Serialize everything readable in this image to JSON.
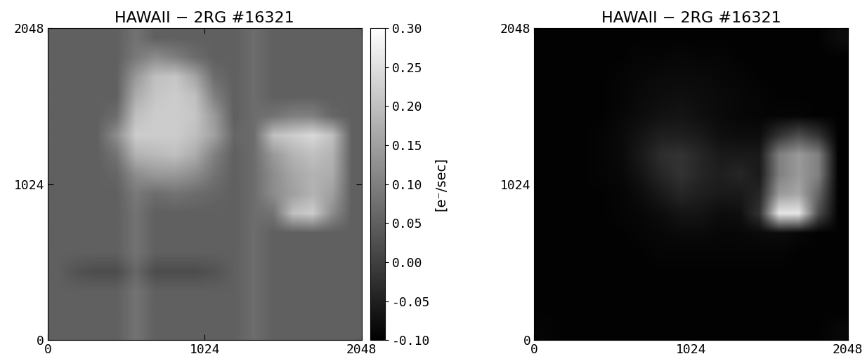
{
  "chart_data": [
    {
      "type": "heatmap",
      "title": "HAWAII − 2RG #16321",
      "xlim": [
        0,
        2048
      ],
      "ylim": [
        0,
        2048
      ],
      "xticks": [
        0,
        1024,
        2048
      ],
      "yticks": [
        0,
        1024,
        2048
      ],
      "color_range": [
        -0.1,
        0.3
      ],
      "colorbar": {
        "label": "[e⁻/sec]",
        "ticks": [
          {
            "value": -0.1,
            "label": "-0.10"
          },
          {
            "value": -0.05,
            "label": "-0.05"
          },
          {
            "value": 0.0,
            "label": "0.00"
          },
          {
            "value": 0.05,
            "label": "0.05"
          },
          {
            "value": 0.1,
            "label": "0.10"
          },
          {
            "value": 0.15,
            "label": "0.15"
          },
          {
            "value": 0.2,
            "label": "0.20"
          },
          {
            "value": 0.25,
            "label": "0.25"
          },
          {
            "value": 0.3,
            "label": "0.30"
          }
        ]
      },
      "cells": [
        [
          0.05,
          0.05,
          0.05,
          0.05,
          0.08,
          0.05,
          0.05,
          0.05,
          0.05,
          0.05,
          0.07,
          0.05,
          0.05,
          0.05,
          0.05,
          0.05
        ],
        [
          0.05,
          0.05,
          0.05,
          0.05,
          0.08,
          0.05,
          0.05,
          0.05,
          0.05,
          0.05,
          0.07,
          0.05,
          0.05,
          0.05,
          0.05,
          0.05
        ],
        [
          0.05,
          0.05,
          0.05,
          0.05,
          0.08,
          0.05,
          0.05,
          0.05,
          0.05,
          0.05,
          0.07,
          0.05,
          0.05,
          0.05,
          0.05,
          0.05
        ],
        [
          0.05,
          0.03,
          0.02,
          0.02,
          0.06,
          0.02,
          0.02,
          0.02,
          0.03,
          0.05,
          0.07,
          0.05,
          0.05,
          0.05,
          0.05,
          0.05
        ],
        [
          0.05,
          0.05,
          0.05,
          0.05,
          0.08,
          0.05,
          0.05,
          0.05,
          0.05,
          0.05,
          0.07,
          0.05,
          0.05,
          0.05,
          0.05,
          0.05
        ],
        [
          0.05,
          0.05,
          0.05,
          0.05,
          0.08,
          0.05,
          0.05,
          0.05,
          0.05,
          0.05,
          0.07,
          0.05,
          0.05,
          0.05,
          0.05,
          0.05
        ],
        [
          0.05,
          0.05,
          0.05,
          0.05,
          0.08,
          0.05,
          0.05,
          0.05,
          0.05,
          0.05,
          0.07,
          0.08,
          0.2,
          0.22,
          0.12,
          0.05
        ],
        [
          0.05,
          0.05,
          0.05,
          0.05,
          0.09,
          0.07,
          0.08,
          0.07,
          0.06,
          0.05,
          0.07,
          0.12,
          0.15,
          0.18,
          0.15,
          0.05
        ],
        [
          0.05,
          0.05,
          0.05,
          0.06,
          0.12,
          0.14,
          0.14,
          0.12,
          0.08,
          0.05,
          0.07,
          0.12,
          0.16,
          0.18,
          0.17,
          0.05
        ],
        [
          0.05,
          0.05,
          0.05,
          0.08,
          0.18,
          0.19,
          0.2,
          0.17,
          0.1,
          0.05,
          0.07,
          0.14,
          0.18,
          0.2,
          0.18,
          0.05
        ],
        [
          0.05,
          0.05,
          0.05,
          0.12,
          0.22,
          0.22,
          0.22,
          0.2,
          0.15,
          0.06,
          0.07,
          0.2,
          0.22,
          0.24,
          0.2,
          0.05
        ],
        [
          0.05,
          0.05,
          0.05,
          0.07,
          0.2,
          0.22,
          0.22,
          0.21,
          0.14,
          0.05,
          0.07,
          0.08,
          0.1,
          0.1,
          0.06,
          0.05
        ],
        [
          0.05,
          0.05,
          0.05,
          0.05,
          0.17,
          0.21,
          0.22,
          0.2,
          0.1,
          0.05,
          0.07,
          0.05,
          0.05,
          0.05,
          0.05,
          0.05
        ],
        [
          0.05,
          0.05,
          0.05,
          0.05,
          0.14,
          0.2,
          0.21,
          0.16,
          0.07,
          0.05,
          0.07,
          0.05,
          0.05,
          0.05,
          0.05,
          0.05
        ],
        [
          0.05,
          0.05,
          0.05,
          0.05,
          0.09,
          0.12,
          0.1,
          0.07,
          0.05,
          0.05,
          0.07,
          0.05,
          0.05,
          0.05,
          0.05,
          0.05
        ],
        [
          0.05,
          0.05,
          0.05,
          0.05,
          0.08,
          0.05,
          0.05,
          0.05,
          0.05,
          0.05,
          0.07,
          0.05,
          0.05,
          0.05,
          0.05,
          0.05
        ]
      ]
    },
    {
      "type": "heatmap",
      "title": "HAWAII − 2RG #16321",
      "xlim": [
        0,
        2048
      ],
      "ylim": [
        0,
        2048
      ],
      "xticks": [
        0,
        1024,
        2048
      ],
      "yticks": [
        0,
        1024,
        2048
      ],
      "color_range": [
        0,
        1
      ],
      "cells": [
        [
          0.02,
          0.01,
          0.01,
          0.01,
          0.01,
          0.01,
          0.01,
          0.01,
          0.01,
          0.01,
          0.01,
          0.01,
          0.01,
          0.01,
          0.01,
          0.03
        ],
        [
          0.01,
          0.01,
          0.01,
          0.01,
          0.01,
          0.01,
          0.01,
          0.01,
          0.01,
          0.01,
          0.01,
          0.01,
          0.01,
          0.01,
          0.01,
          0.01
        ],
        [
          0.01,
          0.01,
          0.01,
          0.01,
          0.01,
          0.01,
          0.01,
          0.01,
          0.01,
          0.01,
          0.01,
          0.01,
          0.01,
          0.01,
          0.01,
          0.01
        ],
        [
          0.01,
          0.01,
          0.01,
          0.01,
          0.01,
          0.01,
          0.01,
          0.01,
          0.01,
          0.01,
          0.01,
          0.01,
          0.01,
          0.01,
          0.01,
          0.01
        ],
        [
          0.01,
          0.01,
          0.01,
          0.01,
          0.01,
          0.01,
          0.02,
          0.02,
          0.02,
          0.02,
          0.02,
          0.02,
          0.02,
          0.01,
          0.01,
          0.01
        ],
        [
          0.01,
          0.01,
          0.01,
          0.01,
          0.01,
          0.02,
          0.03,
          0.04,
          0.04,
          0.03,
          0.03,
          0.04,
          0.05,
          0.03,
          0.01,
          0.01
        ],
        [
          0.01,
          0.01,
          0.01,
          0.01,
          0.02,
          0.03,
          0.05,
          0.08,
          0.08,
          0.05,
          0.06,
          0.2,
          0.9,
          0.9,
          0.3,
          0.01
        ],
        [
          0.01,
          0.01,
          0.01,
          0.01,
          0.02,
          0.05,
          0.1,
          0.15,
          0.12,
          0.1,
          0.1,
          0.15,
          0.6,
          0.65,
          0.4,
          0.01
        ],
        [
          0.01,
          0.01,
          0.01,
          0.02,
          0.03,
          0.08,
          0.15,
          0.2,
          0.15,
          0.12,
          0.15,
          0.1,
          0.5,
          0.6,
          0.5,
          0.01
        ],
        [
          0.01,
          0.01,
          0.01,
          0.02,
          0.04,
          0.1,
          0.18,
          0.2,
          0.15,
          0.1,
          0.1,
          0.1,
          0.5,
          0.6,
          0.5,
          0.01
        ],
        [
          0.01,
          0.01,
          0.01,
          0.02,
          0.04,
          0.08,
          0.12,
          0.12,
          0.1,
          0.06,
          0.05,
          0.05,
          0.2,
          0.3,
          0.2,
          0.01
        ],
        [
          0.01,
          0.01,
          0.01,
          0.01,
          0.03,
          0.05,
          0.07,
          0.08,
          0.06,
          0.04,
          0.03,
          0.02,
          0.02,
          0.02,
          0.01,
          0.01
        ],
        [
          0.01,
          0.01,
          0.01,
          0.01,
          0.02,
          0.04,
          0.05,
          0.06,
          0.05,
          0.04,
          0.03,
          0.02,
          0.01,
          0.01,
          0.01,
          0.01
        ],
        [
          0.01,
          0.01,
          0.01,
          0.01,
          0.02,
          0.03,
          0.04,
          0.04,
          0.04,
          0.03,
          0.02,
          0.01,
          0.01,
          0.01,
          0.01,
          0.01
        ],
        [
          0.01,
          0.01,
          0.01,
          0.01,
          0.01,
          0.02,
          0.02,
          0.03,
          0.02,
          0.02,
          0.01,
          0.01,
          0.01,
          0.01,
          0.01,
          0.01
        ],
        [
          0.01,
          0.01,
          0.01,
          0.01,
          0.01,
          0.01,
          0.01,
          0.01,
          0.01,
          0.01,
          0.01,
          0.01,
          0.01,
          0.01,
          0.01,
          0.05
        ]
      ]
    }
  ]
}
